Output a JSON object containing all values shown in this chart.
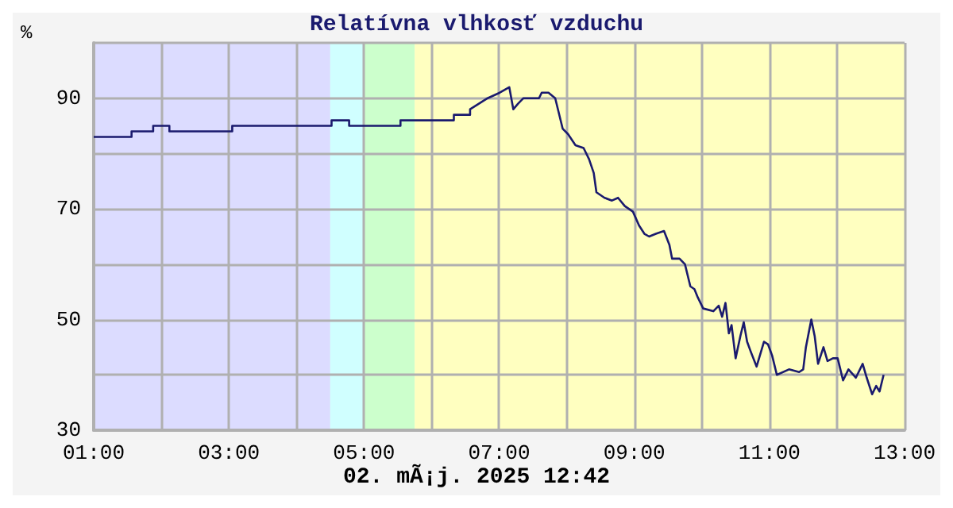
{
  "chart_data": {
    "type": "line",
    "title": "Relatívna vlhkosť vzduchu",
    "ylabel": "%",
    "annotations": [
      "02. mÃ¡j. 2025 12:42"
    ],
    "x": [
      1,
      1.56,
      1.56,
      1.88,
      1.88,
      2.12,
      2.12,
      3.05,
      3.05,
      4.52,
      4.52,
      4.78,
      4.78,
      5.54,
      5.54,
      6.33,
      6.33,
      6.57,
      6.57,
      6.7,
      6.83,
      7.01,
      7.15,
      7.21,
      7.28,
      7.36,
      7.59,
      7.63,
      7.73,
      7.83,
      7.94,
      8.02,
      8.13,
      8.25,
      8.33,
      8.4,
      8.44,
      8.56,
      8.67,
      8.76,
      8.86,
      8.98,
      9.07,
      9.15,
      9.22,
      9.32,
      9.44,
      9.52,
      9.56,
      9.67,
      9.75,
      9.83,
      9.89,
      9.94,
      10.02,
      10.17,
      10.25,
      10.3,
      10.35,
      10.4,
      10.44,
      10.5,
      10.57,
      10.62,
      10.67,
      10.73,
      10.81,
      10.92,
      10.98,
      11.04,
      11.11,
      11.29,
      11.44,
      11.5,
      11.54,
      11.62,
      11.67,
      11.72,
      11.8,
      11.86,
      11.94,
      12.01,
      12.09,
      12.17,
      12.28,
      12.38,
      12.44,
      12.52,
      12.58,
      12.63,
      12.69
    ],
    "series": [
      {
        "color": "#1a1a6e",
        "values": [
          83,
          83,
          84,
          84,
          85,
          85,
          84,
          84,
          85,
          85,
          86,
          86,
          85,
          85,
          86,
          86,
          87,
          87,
          88,
          89,
          90,
          91,
          92,
          88,
          89,
          90,
          90,
          91,
          91,
          90,
          84.5,
          83.5,
          81.5,
          81,
          79,
          76.5,
          73,
          72,
          71.5,
          72,
          70.5,
          69.5,
          67,
          65.5,
          65,
          65.5,
          66,
          63.5,
          61,
          61,
          60,
          56,
          55.5,
          54,
          52,
          51.5,
          52.5,
          50.5,
          53,
          47.5,
          49,
          43,
          47,
          49.5,
          46,
          44,
          41.5,
          46,
          45.5,
          43.5,
          40,
          41,
          40.5,
          41,
          45,
          50,
          47,
          42,
          45,
          42.5,
          43,
          43,
          39,
          41,
          39.5,
          42,
          39.5,
          36.5,
          38,
          37,
          40
        ]
      }
    ],
    "xlim": [
      1,
      13
    ],
    "ylim": [
      30,
      100
    ],
    "xticks": [
      {
        "value": 1,
        "label": "01:00"
      },
      {
        "value": 2,
        "label": null
      },
      {
        "value": 3,
        "label": "03:00"
      },
      {
        "value": 4,
        "label": null
      },
      {
        "value": 5,
        "label": "05:00"
      },
      {
        "value": 6,
        "label": null
      },
      {
        "value": 7,
        "label": "07:00"
      },
      {
        "value": 8,
        "label": null
      },
      {
        "value": 9,
        "label": "09:00"
      },
      {
        "value": 10,
        "label": null
      },
      {
        "value": 11,
        "label": "11:00"
      },
      {
        "value": 12,
        "label": null
      },
      {
        "value": 13,
        "label": "13:00"
      }
    ],
    "yticks": [
      30,
      {
        "value": 40,
        "label": null
      },
      50,
      {
        "value": 60,
        "label": null
      },
      70,
      {
        "value": 80,
        "label": null
      },
      90,
      {
        "value": 100,
        "label": null
      }
    ],
    "bands": [
      {
        "axis": "x",
        "from": 1,
        "to": 4.5,
        "color": "#dcdcff"
      },
      {
        "axis": "x",
        "from": 4.5,
        "to": 5,
        "color": "#d0ffff"
      },
      {
        "axis": "x",
        "from": 5,
        "to": 5.75,
        "color": "#ccffcc"
      },
      {
        "axis": "x",
        "from": 5.75,
        "to": 13,
        "color": "#ffffc0"
      }
    ],
    "grid": true,
    "marker": "none",
    "line_style": "solid"
  }
}
